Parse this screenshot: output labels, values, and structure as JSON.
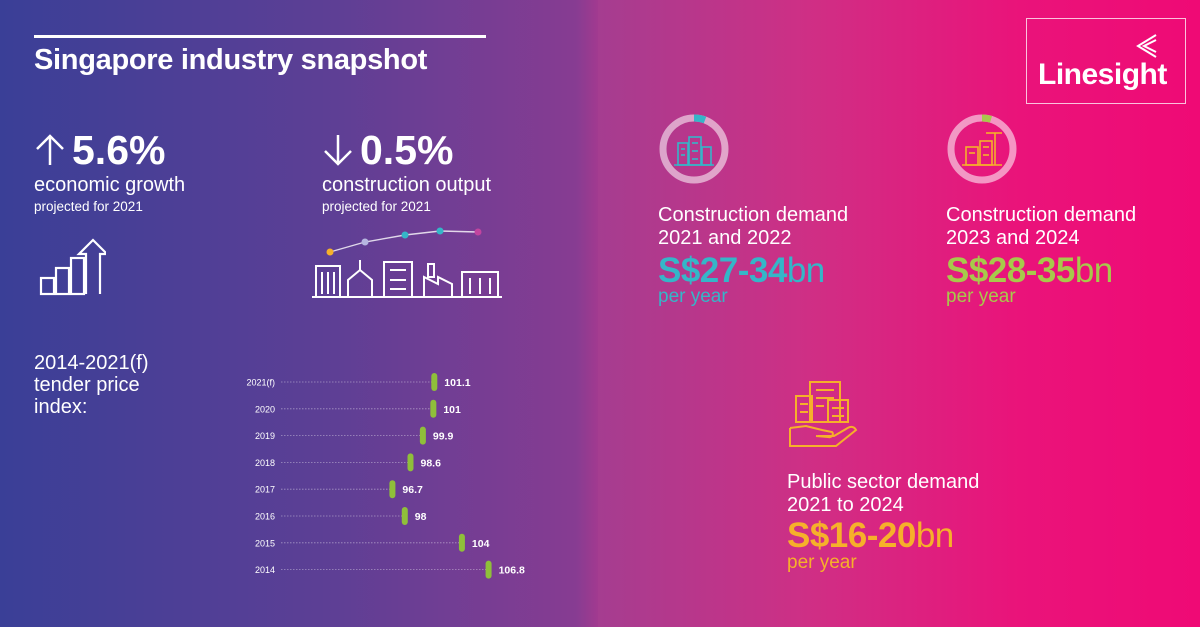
{
  "title": "Singapore industry snapshot",
  "logo": {
    "text": "Linesight"
  },
  "stats": [
    {
      "direction": "up",
      "value": "5.6%",
      "label": "economic growth",
      "sub": "projected for 2021"
    },
    {
      "direction": "down",
      "value": "0.5%",
      "label": "construction output",
      "sub": "projected for 2021"
    }
  ],
  "tpi_label": "2014-2021(f) tender price index:",
  "demand": [
    {
      "title_line1": "Construction demand",
      "title_line2": "2021 and 2022",
      "value": "S$27-34",
      "unit": "bn",
      "per": "per year",
      "color": "#35b6c8"
    },
    {
      "title_line1": "Construction demand",
      "title_line2": "2023 and 2024",
      "value": "S$28-35",
      "unit": "bn",
      "per": "per year",
      "color": "#a7c94b"
    },
    {
      "title_line1": "Public sector demand",
      "title_line2": "2021 to 2024",
      "value": "S$16-20",
      "unit": "bn",
      "per": "per year",
      "color": "#f6b02a"
    }
  ],
  "colors": {
    "marker": "#8fbf3a",
    "teal": "#35b6c8",
    "lime": "#a7c94b",
    "gold": "#f6b02a"
  },
  "chart_data": {
    "type": "scatter",
    "title": "2014-2021(f) tender price index:",
    "categories": [
      "2021(f)",
      "2020",
      "2019",
      "2018",
      "2017",
      "2016",
      "2015",
      "2014"
    ],
    "values": [
      101.1,
      101,
      99.9,
      98.6,
      96.7,
      98,
      104,
      106.8
    ],
    "labels": [
      "101.1",
      "101",
      "99.9",
      "98.6",
      "96.7",
      "98",
      "104",
      "106.8"
    ],
    "xlim": [
      85,
      108
    ],
    "xlabel": "",
    "ylabel": "",
    "grid": true
  }
}
